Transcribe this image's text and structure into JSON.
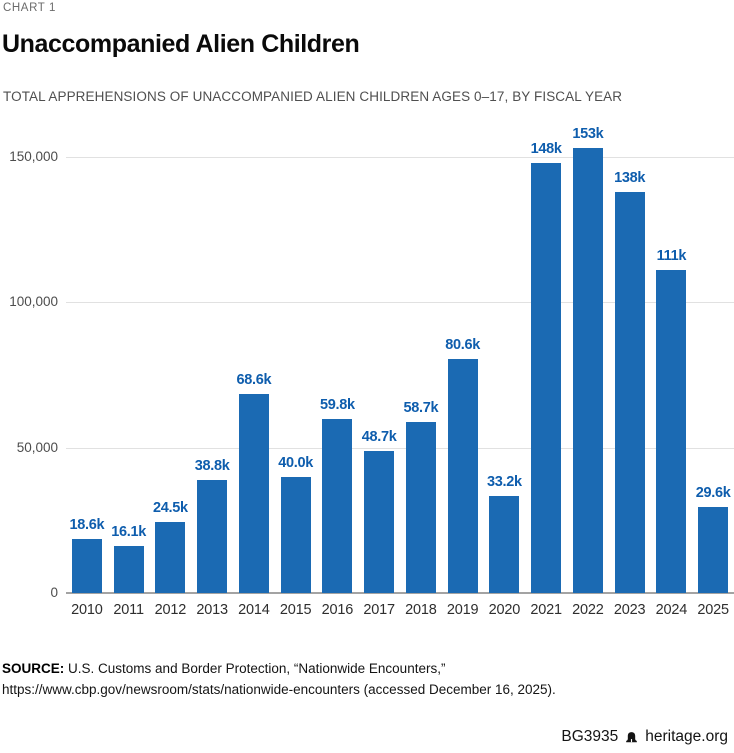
{
  "header": {
    "kicker": "CHART 1",
    "title": "Unaccompanied Alien Children",
    "subtitle": "TOTAL APPREHENSIONS OF UNACCOMPANIED ALIEN CHILDREN AGES 0–17, BY FISCAL YEAR"
  },
  "chart_data": {
    "type": "bar",
    "title": "Unaccompanied Alien Children",
    "xlabel": "",
    "ylabel": "",
    "categories": [
      "2010",
      "2011",
      "2012",
      "2013",
      "2014",
      "2015",
      "2016",
      "2017",
      "2018",
      "2019",
      "2020",
      "2021",
      "2022",
      "2023",
      "2024",
      "2025"
    ],
    "values": [
      18600,
      16100,
      24500,
      38800,
      68600,
      40000,
      59800,
      48700,
      58700,
      80600,
      33200,
      148000,
      153000,
      138000,
      111000,
      29600
    ],
    "value_labels": [
      "18.6k",
      "16.1k",
      "24.5k",
      "38.8k",
      "68.6k",
      "40.0k",
      "59.8k",
      "48.7k",
      "58.7k",
      "80.6k",
      "33.2k",
      "148k",
      "153k",
      "138k",
      "111k",
      "29.6k"
    ],
    "y_ticks": [
      {
        "value": 0,
        "label": "0"
      },
      {
        "value": 50000,
        "label": "50,000"
      },
      {
        "value": 100000,
        "label": "100,000"
      },
      {
        "value": 150000,
        "label": "150,000"
      }
    ],
    "ylim": [
      0,
      155000
    ],
    "grid": true,
    "legend_position": "none",
    "bar_color": "#1b6ab3",
    "value_label_color": "#0e5dad"
  },
  "source": {
    "label": "SOURCE:",
    "line1": "U.S. Customs and Border Protection, “Nationwide Encounters,”",
    "line2": "https://www.cbp.gov/newsroom/stats/nationwide-encounters (accessed December 16, 2025)."
  },
  "footer": {
    "report_id": "BG3935",
    "site": "heritage.org",
    "icon": "liberty-bell-icon"
  }
}
